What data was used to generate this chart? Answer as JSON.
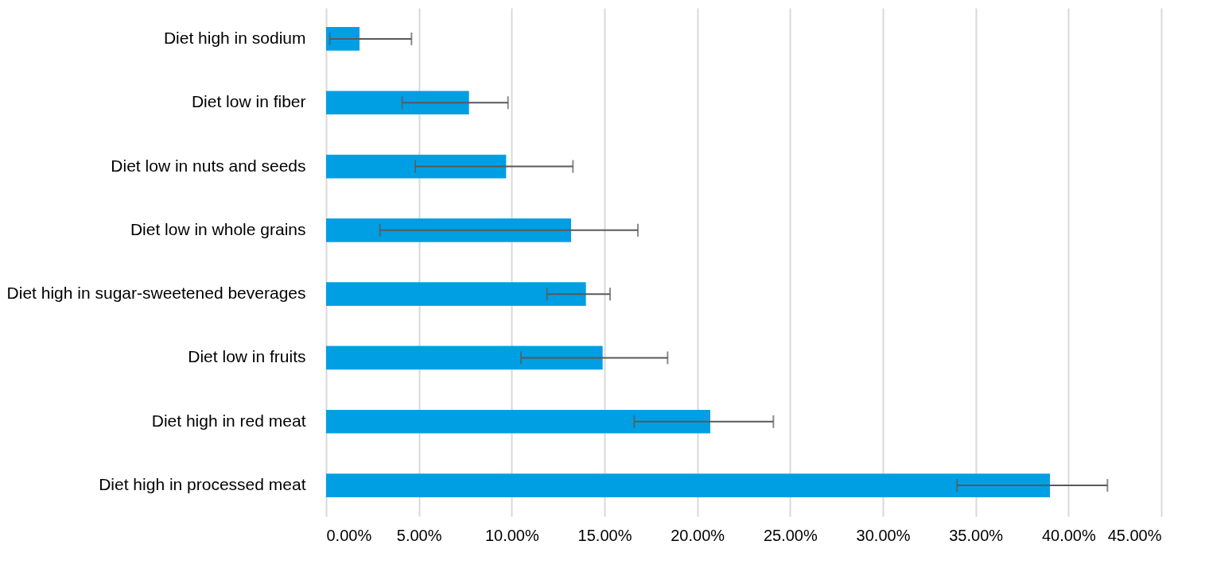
{
  "chart_data": {
    "type": "bar",
    "orientation": "horizontal",
    "categories": [
      "Diet high in sodium",
      "Diet low in fiber",
      "Diet low in nuts and seeds",
      "Diet low in whole grains",
      "Diet high in sugar-sweetened beverages",
      "Diet low in fruits",
      "Diet high in red meat",
      "Diet high in processed meat"
    ],
    "values": [
      1.8,
      7.7,
      9.7,
      13.2,
      14.0,
      14.9,
      20.7,
      39.0
    ],
    "errors": [
      [
        0.2,
        4.6
      ],
      [
        4.1,
        9.8
      ],
      [
        4.8,
        13.3
      ],
      [
        2.9,
        16.8
      ],
      [
        11.9,
        15.3
      ],
      [
        10.5,
        18.4
      ],
      [
        16.6,
        24.1
      ],
      [
        34.0,
        42.1
      ]
    ],
    "color": "#009fe3",
    "xlim": [
      0,
      45
    ],
    "xticks": [
      {
        "value": 0,
        "label": "0.00%"
      },
      {
        "value": 5,
        "label": "5.00%"
      },
      {
        "value": 10,
        "label": "10.00%"
      },
      {
        "value": 15,
        "label": "15.00%"
      },
      {
        "value": 20,
        "label": "20.00%"
      },
      {
        "value": 25,
        "label": "25.00%"
      },
      {
        "value": 30,
        "label": "30.00%"
      },
      {
        "value": 35,
        "label": "35.00%"
      },
      {
        "value": 40,
        "label": "40.00%"
      },
      {
        "value": 45,
        "label": "45.00%"
      }
    ],
    "grid": "x"
  }
}
